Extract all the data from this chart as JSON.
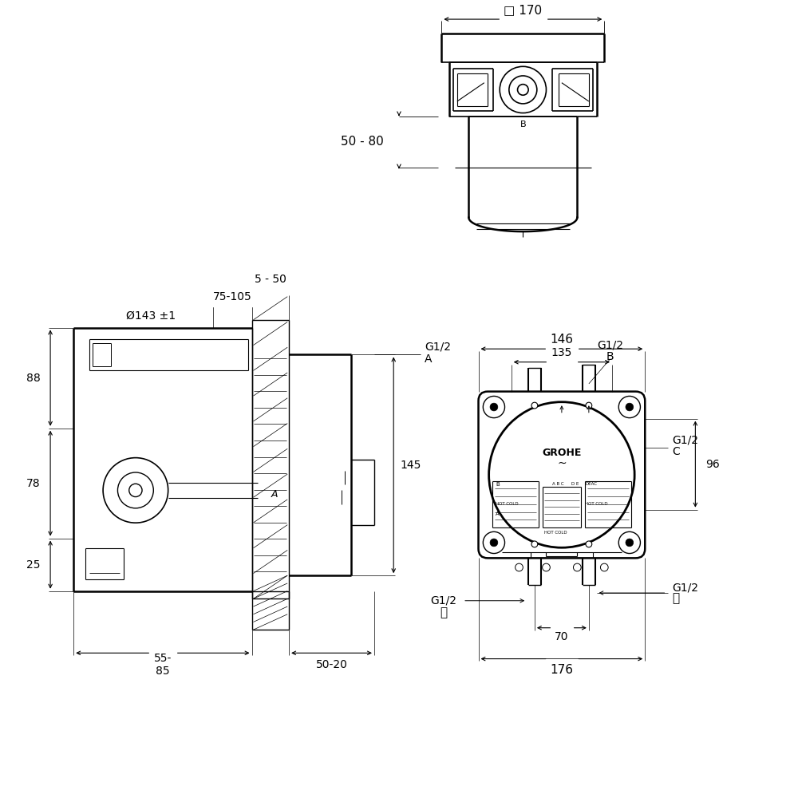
{
  "bg_color": "#ffffff",
  "line_color": "#000000",
  "fig_size": [
    10,
    10
  ],
  "dpi": 100,
  "labels": {
    "dim_170": "□ 170",
    "dim_50_80": "50 - 80",
    "label_B_top": "B",
    "dim_75_105": "75-105",
    "dim_5_50": "5 - 50",
    "dim_phi": "Ø143 ±1",
    "dim_88": "88",
    "dim_78": "78",
    "dim_25": "25",
    "dim_55_85": "55-\n85",
    "dim_50_20": "50-20",
    "dim_145": "145",
    "label_G1_2_A": "G1/2",
    "label_A": "A",
    "dim_146": "146",
    "dim_135": "135",
    "label_G1_2_B": "G1/2",
    "label_B_right": "B",
    "label_G1_2_C": "G1/2",
    "label_C": "C",
    "dim_96": "96",
    "label_G1_2_yu": "G1/2",
    "label_yu": "湯",
    "label_G1_2_mizu": "G1/2",
    "label_mizu": "水",
    "dim_70": "70",
    "dim_176": "176",
    "grohe": "GROHE"
  }
}
